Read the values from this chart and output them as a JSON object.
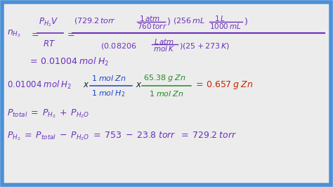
{
  "bg_color": "#ececec",
  "border_color": "#4a90d9",
  "border_lw": 4,
  "purple": "#6a2fbe",
  "blue": "#1a44cc",
  "green": "#228B22",
  "red": "#cc2200",
  "dark": "#1a1a2e",
  "figsize": [
    4.74,
    2.66
  ],
  "dpi": 100
}
